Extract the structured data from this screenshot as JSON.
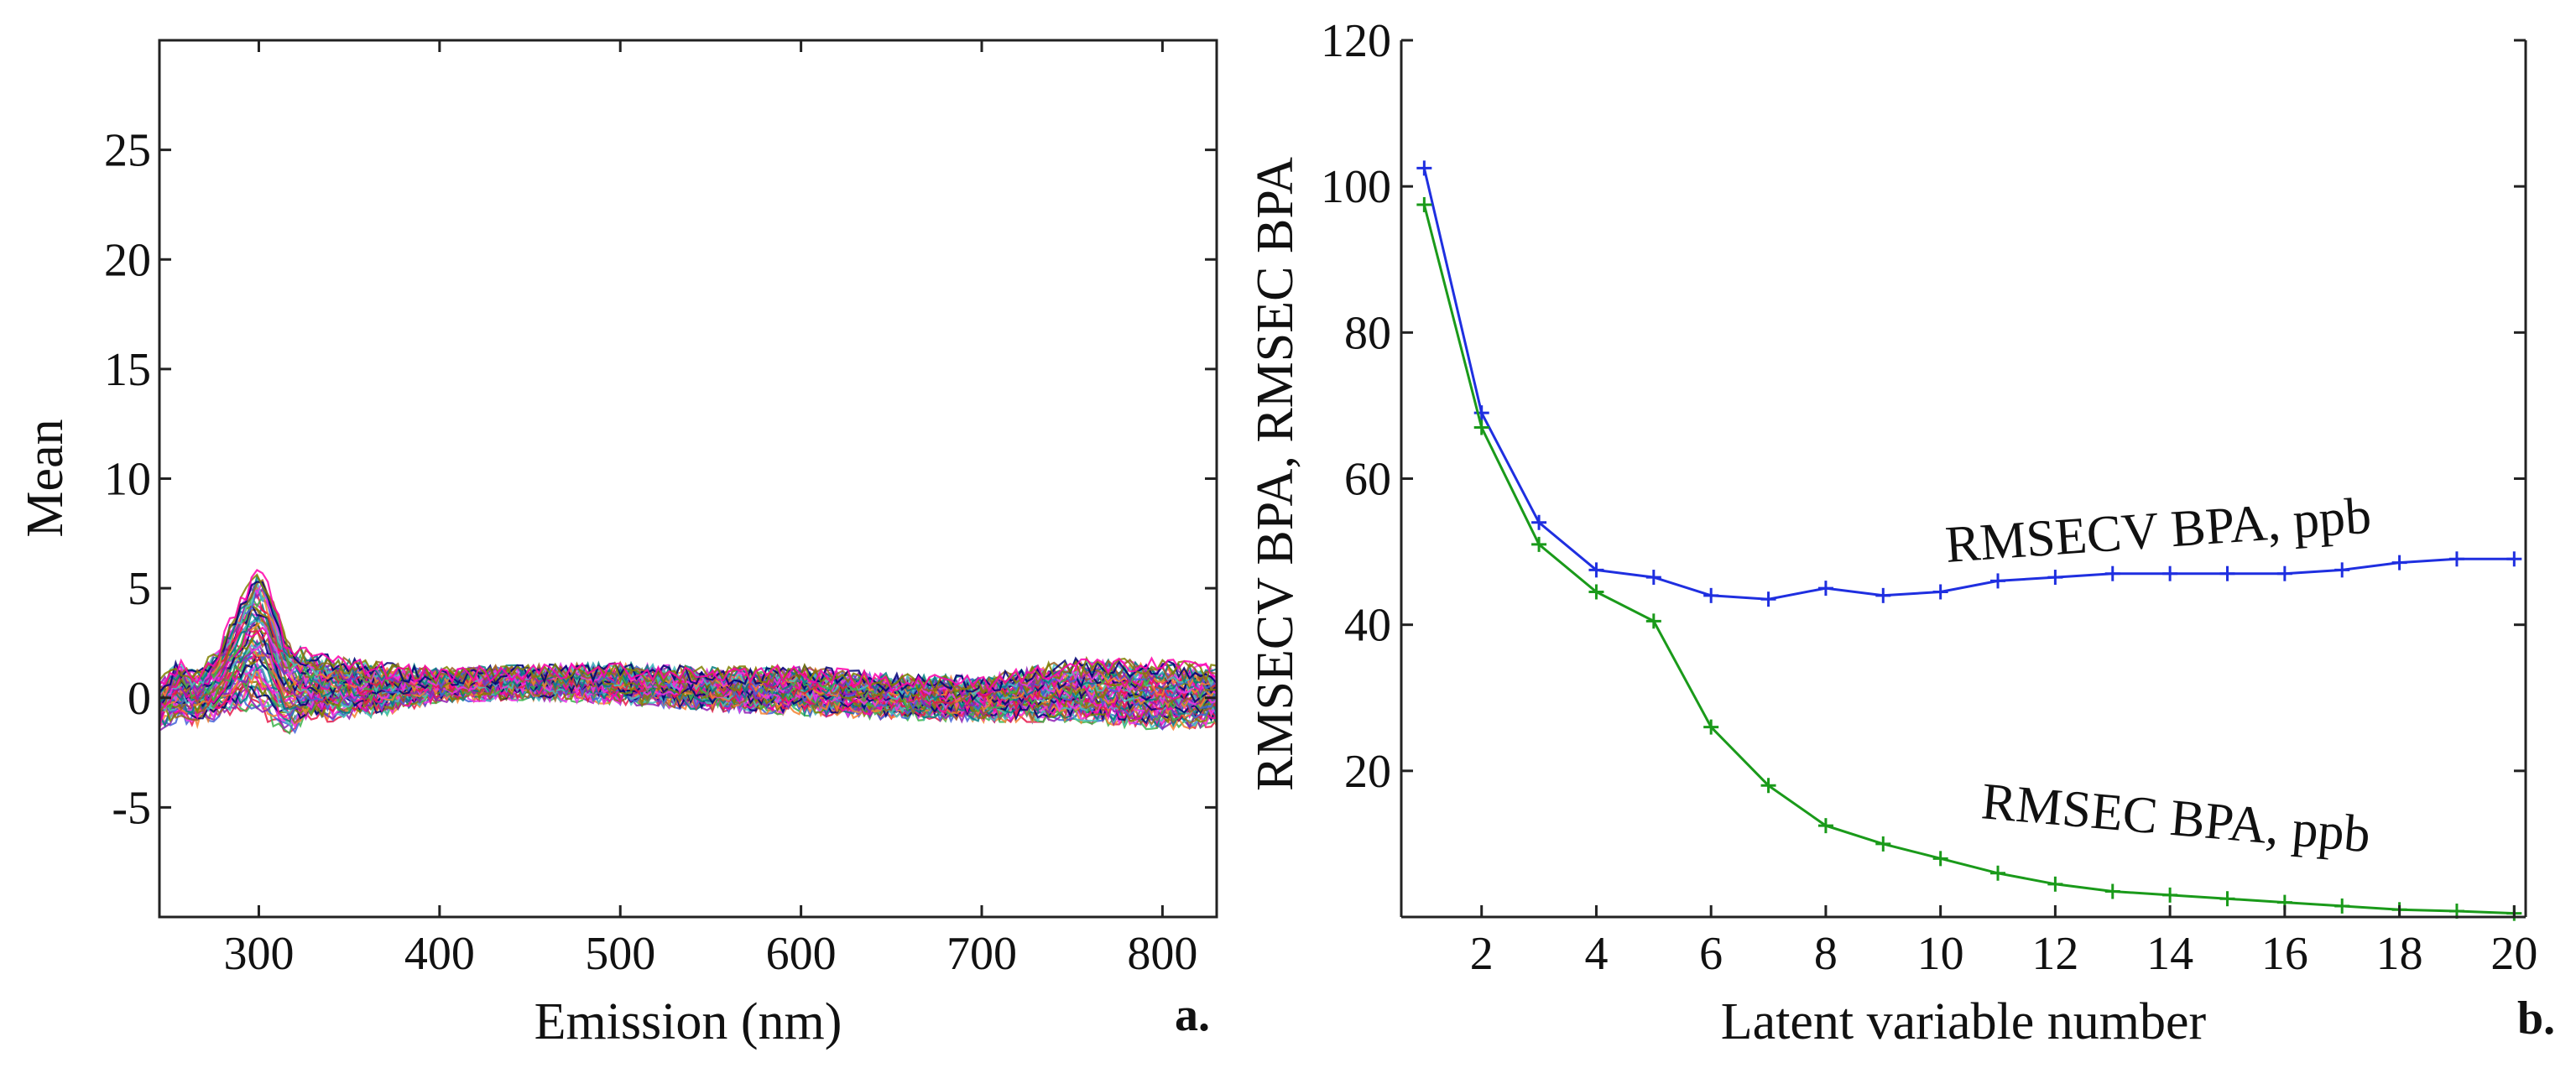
{
  "figure": {
    "panel_labels": [
      "a.",
      "b."
    ]
  },
  "chart_data": [
    {
      "type": "line",
      "panel": "a.",
      "xlabel": "Emission (nm)",
      "ylabel": "Mean",
      "xlim": [
        245,
        830
      ],
      "ylim": [
        -10,
        30
      ],
      "xticks": [
        300,
        400,
        500,
        600,
        700,
        800
      ],
      "yticks": [
        -5,
        0,
        5,
        10,
        15,
        20,
        25
      ],
      "xtick_labels": [
        "300",
        "400",
        "500",
        "600",
        "700",
        "800"
      ],
      "ytick_labels": [
        "-5",
        "0",
        "5",
        "10",
        "15",
        "20",
        "25"
      ],
      "grid": false,
      "note": "Many overlaid multicolored spectra",
      "envelope": {
        "x": [
          245,
          255,
          265,
          275,
          285,
          295,
          300,
          305,
          315,
          330,
          350,
          370,
          400,
          450,
          500,
          550,
          600,
          650,
          700,
          750,
          800,
          830
        ],
        "upper": [
          0.5,
          1.5,
          1.0,
          1.8,
          3.5,
          5.2,
          5.8,
          5.0,
          2.5,
          1.8,
          1.5,
          1.3,
          1.1,
          1.2,
          1.3,
          1.1,
          1.2,
          0.8,
          0.7,
          1.5,
          1.5,
          1.2
        ],
        "lower": [
          -1.2,
          -0.8,
          -1.0,
          -0.8,
          -0.5,
          -0.3,
          -0.6,
          -0.8,
          -1.5,
          -0.9,
          -0.7,
          -0.5,
          0.1,
          0.2,
          0.0,
          -0.3,
          -0.5,
          -0.7,
          -0.8,
          -0.8,
          -1.2,
          -1.0
        ]
      },
      "series_colors": [
        "#e6194b",
        "#3cb44b",
        "#4363d8",
        "#f58231",
        "#911eb4",
        "#46c0c0",
        "#f032e6",
        "#008080",
        "#9a6324",
        "#000075",
        "#808000",
        "#ff00aa"
      ]
    },
    {
      "type": "line",
      "panel": "b.",
      "xlabel": "Latent variable number",
      "ylabel": "RMSECV BPA, RMSEC BPA",
      "xlim": [
        0.6,
        20.2
      ],
      "ylim": [
        0,
        120
      ],
      "xticks": [
        2,
        4,
        6,
        8,
        10,
        12,
        14,
        16,
        18,
        20
      ],
      "yticks": [
        20,
        40,
        60,
        80,
        100,
        120
      ],
      "xtick_labels": [
        "2",
        "4",
        "6",
        "8",
        "10",
        "12",
        "14",
        "16",
        "18",
        "20"
      ],
      "ytick_labels": [
        "20",
        "40",
        "60",
        "80",
        "100",
        "120"
      ],
      "grid": false,
      "x": [
        1,
        2,
        3,
        4,
        5,
        6,
        7,
        8,
        9,
        10,
        11,
        12,
        13,
        14,
        15,
        16,
        17,
        18,
        19,
        20
      ],
      "series": [
        {
          "name": "RMSECV BPA, ppb",
          "color": "#1f2fe0",
          "values": [
            102.5,
            69,
            54,
            47.5,
            46.5,
            44,
            43.5,
            45,
            44,
            44.5,
            46,
            46.5,
            47,
            47,
            47,
            47,
            47.5,
            48.5,
            49,
            49
          ]
        },
        {
          "name": "RMSEC BPA, ppb",
          "color": "#1a9a1a",
          "values": [
            97.5,
            67,
            51,
            44.5,
            40.5,
            26,
            18,
            12.5,
            10,
            8,
            6,
            4.5,
            3.5,
            3,
            2.5,
            2,
            1.5,
            1,
            0.8,
            0.5
          ]
        }
      ],
      "annotations": [
        "RMSECV BPA, ppb",
        "RMSEC BPA, ppb"
      ]
    }
  ]
}
